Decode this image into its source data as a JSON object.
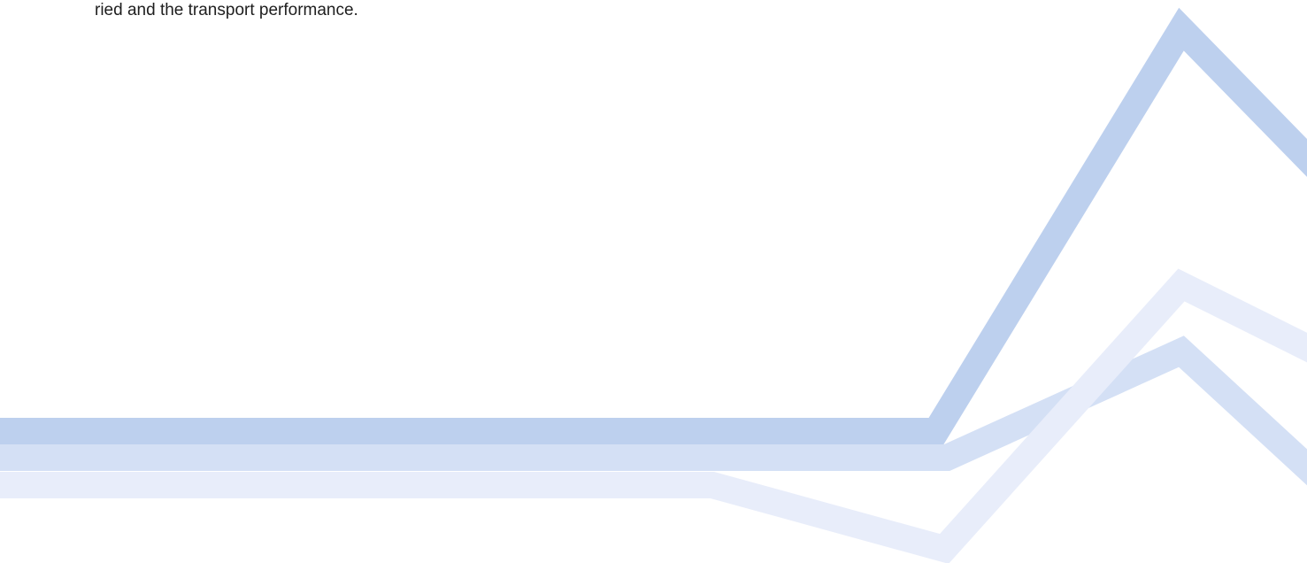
{
  "text": "ried and the transport performance."
}
